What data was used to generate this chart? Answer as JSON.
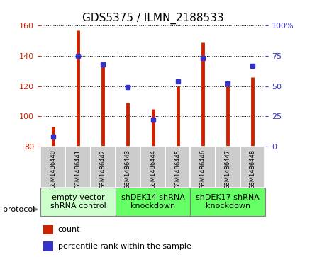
{
  "title": "GDS5375 / ILMN_2188533",
  "samples": [
    "GSM1486440",
    "GSM1486441",
    "GSM1486442",
    "GSM1486443",
    "GSM1486444",
    "GSM1486445",
    "GSM1486446",
    "GSM1486447",
    "GSM1486448"
  ],
  "counts": [
    93,
    157,
    133,
    109,
    105,
    120,
    149,
    123,
    126
  ],
  "percentiles": [
    8,
    75,
    68,
    49,
    22,
    54,
    73,
    52,
    67
  ],
  "ylim_left": [
    80,
    160
  ],
  "ylim_right": [
    0,
    100
  ],
  "yticks_left": [
    80,
    100,
    120,
    140,
    160
  ],
  "yticks_right": [
    0,
    25,
    50,
    75,
    100
  ],
  "bar_color": "#cc2200",
  "dot_color": "#3333cc",
  "groups": [
    {
      "label": "empty vector\nshRNA control",
      "start": 0,
      "end": 3,
      "color": "#ccffcc"
    },
    {
      "label": "shDEK14 shRNA\nknockdown",
      "start": 3,
      "end": 6,
      "color": "#66ff66"
    },
    {
      "label": "shDEK17 shRNA\nknockdown",
      "start": 6,
      "end": 9,
      "color": "#66ff66"
    }
  ],
  "protocol_label": "protocol",
  "legend_count_label": "count",
  "legend_pct_label": "percentile rank within the sample",
  "tick_area_color": "#cccccc",
  "title_fontsize": 11,
  "tick_fontsize": 8,
  "sample_fontsize": 6,
  "group_fontsize": 8,
  "legend_fontsize": 8
}
